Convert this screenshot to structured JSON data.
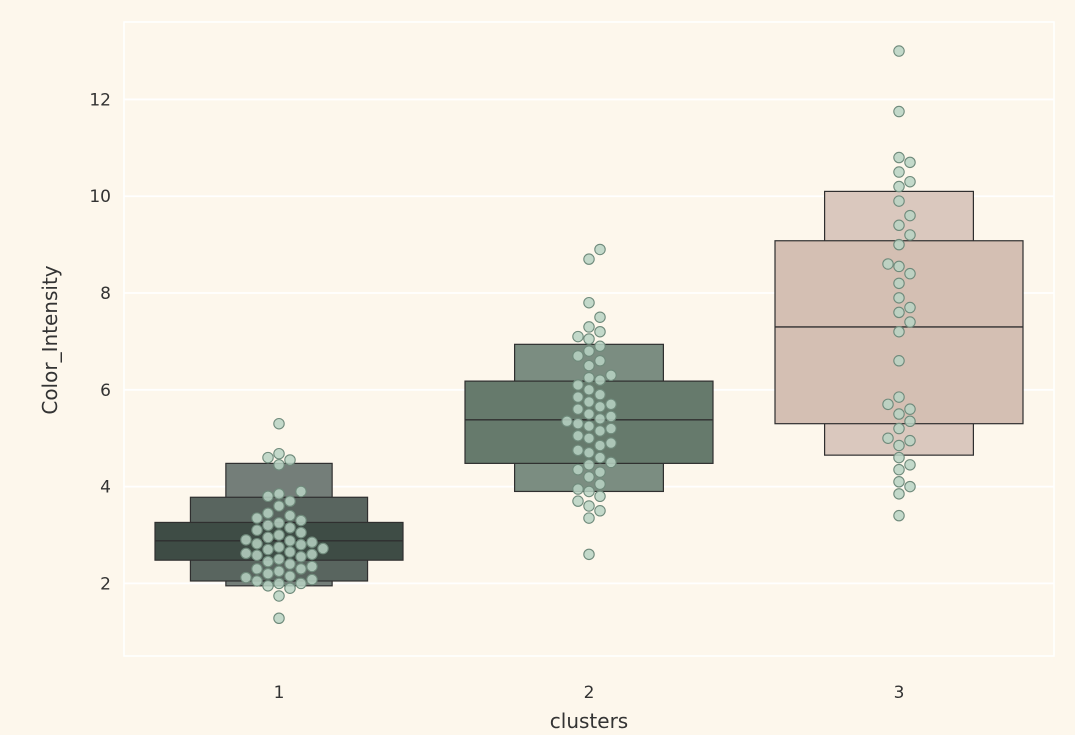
{
  "chart_data": {
    "type": "boxen",
    "xlabel": "clusters",
    "ylabel": "Color_Intensity",
    "categories": [
      "1",
      "2",
      "3"
    ],
    "yticks": [
      2,
      4,
      6,
      8,
      10,
      12
    ],
    "ylim": [
      0.5,
      13.6
    ],
    "grid": true,
    "series": [
      {
        "category": "1",
        "color": "#3e4c45",
        "median": 2.88,
        "boxes": [
          {
            "low": 2.48,
            "high": 3.26
          },
          {
            "low": 2.05,
            "high": 3.78
          },
          {
            "low": 1.95,
            "high": 4.48
          }
        ],
        "points": [
          1.28,
          1.74,
          1.9,
          1.95,
          2.0,
          2.0,
          2.05,
          2.08,
          2.12,
          2.15,
          2.2,
          2.25,
          2.3,
          2.3,
          2.35,
          2.4,
          2.45,
          2.5,
          2.55,
          2.58,
          2.6,
          2.62,
          2.65,
          2.7,
          2.72,
          2.75,
          2.8,
          2.82,
          2.85,
          2.88,
          2.9,
          2.95,
          3.0,
          3.05,
          3.1,
          3.15,
          3.2,
          3.25,
          3.3,
          3.35,
          3.4,
          3.45,
          3.6,
          3.7,
          3.8,
          3.85,
          3.9,
          4.45,
          4.55,
          4.6,
          4.68,
          5.3
        ]
      },
      {
        "category": "2",
        "color": "#667a6c",
        "median": 5.38,
        "boxes": [
          {
            "low": 4.48,
            "high": 6.18
          },
          {
            "low": 3.9,
            "high": 6.94
          }
        ],
        "points": [
          2.6,
          3.35,
          3.5,
          3.6,
          3.7,
          3.8,
          3.9,
          3.95,
          4.05,
          4.2,
          4.3,
          4.35,
          4.45,
          4.5,
          4.6,
          4.7,
          4.75,
          4.85,
          4.9,
          5.0,
          5.05,
          5.15,
          5.2,
          5.25,
          5.3,
          5.35,
          5.4,
          5.45,
          5.5,
          5.6,
          5.65,
          5.7,
          5.75,
          5.85,
          5.9,
          6.0,
          6.1,
          6.2,
          6.25,
          6.3,
          6.5,
          6.6,
          6.7,
          6.8,
          6.9,
          7.05,
          7.1,
          7.2,
          7.3,
          7.5,
          7.8,
          8.7,
          8.9
        ]
      },
      {
        "category": "3",
        "color": "#d4bfb3",
        "median": 7.3,
        "boxes": [
          {
            "low": 5.3,
            "high": 9.08
          },
          {
            "low": 4.65,
            "high": 10.1
          }
        ],
        "points": [
          3.4,
          3.85,
          4.0,
          4.1,
          4.35,
          4.45,
          4.6,
          4.85,
          4.95,
          5.0,
          5.2,
          5.35,
          5.5,
          5.6,
          5.7,
          5.85,
          6.6,
          7.2,
          7.4,
          7.6,
          7.7,
          7.9,
          8.2,
          8.4,
          8.55,
          8.6,
          9.0,
          9.2,
          9.4,
          9.6,
          9.9,
          10.2,
          10.3,
          10.5,
          10.7,
          10.8,
          11.75,
          13.0
        ]
      }
    ]
  }
}
